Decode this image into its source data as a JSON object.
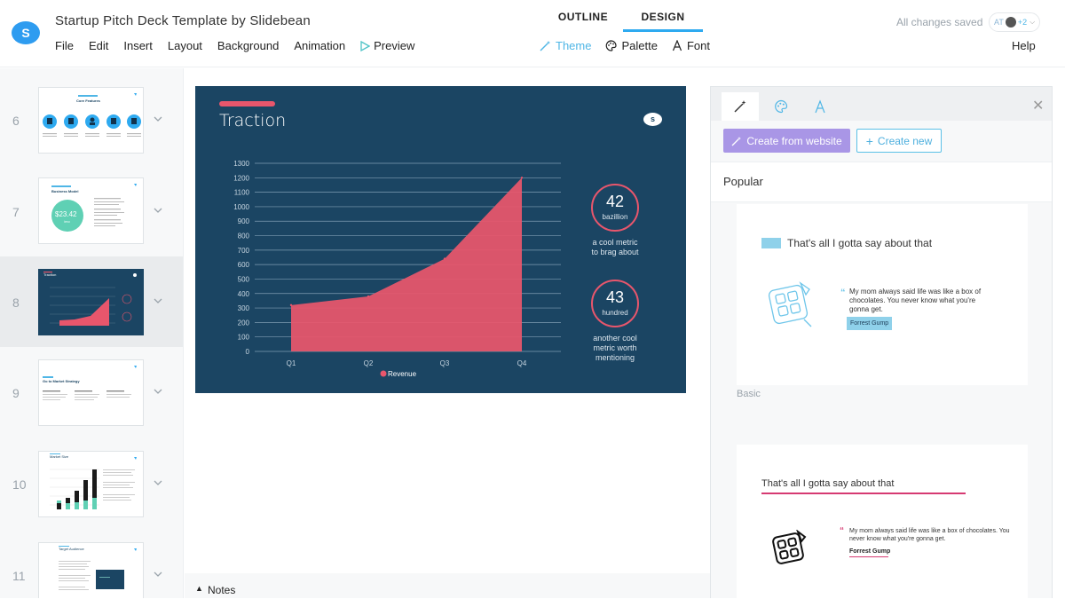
{
  "app": {
    "doc_title": "Startup Pitch Deck Template by Slidebean",
    "logo_letter": "S",
    "saved_status": "All changes saved",
    "help_label": "Help"
  },
  "menu": {
    "items": [
      "File",
      "Edit",
      "Insert",
      "Layout",
      "Background",
      "Animation"
    ],
    "preview_label": "Preview"
  },
  "modes": {
    "outline": "OUTLINE",
    "design": "DESIGN",
    "active": "DESIGN"
  },
  "design_tools": {
    "theme": "Theme",
    "palette": "Palette",
    "font": "Font",
    "active": "Theme"
  },
  "collaborators": {
    "initials": "AT",
    "extra_count": "+2"
  },
  "sidebar": {
    "slides": [
      {
        "number": "6",
        "title": "Core Features"
      },
      {
        "number": "7",
        "title": "Business Model",
        "price": "$23.42",
        "price_unit": "/mo"
      },
      {
        "number": "8",
        "title": "Traction",
        "active": true
      },
      {
        "number": "9",
        "title": "Go to Market Strategy"
      },
      {
        "number": "10",
        "title": "Market Size"
      },
      {
        "number": "11",
        "title": "Target Audience"
      }
    ]
  },
  "slide": {
    "title": "Traction",
    "logo_letter": "s",
    "metrics": [
      {
        "value": "42",
        "unit": "bazillion",
        "caption_lines": [
          "a cool metric",
          "to brag about"
        ]
      },
      {
        "value": "43",
        "unit": "hundred",
        "caption_lines": [
          "another cool",
          "metric worth",
          "mentioning"
        ]
      }
    ],
    "colors": {
      "background": "#1b4563",
      "accent": "#e8566c",
      "text": "#ffffff"
    }
  },
  "chart_data": {
    "type": "area",
    "categories": [
      "Q1",
      "Q2",
      "Q3",
      "Q4"
    ],
    "series": [
      {
        "name": "Revenue",
        "values": [
          320,
          380,
          640,
          1200
        ]
      }
    ],
    "ylim": [
      0,
      1300
    ],
    "yticks": [
      0,
      100,
      200,
      300,
      400,
      500,
      600,
      700,
      800,
      900,
      1000,
      1100,
      1200,
      1300
    ],
    "grid": true,
    "legend": "bottom",
    "title": "",
    "xlabel": "",
    "ylabel": ""
  },
  "notes_label": "Notes",
  "panel": {
    "create_from_website": "Create from website",
    "create_new": "Create new",
    "section_title": "Popular",
    "themes": [
      {
        "name": "Basic",
        "heading": "That's all I gotta say about that",
        "quote_lines": [
          "My mom always said life was like a box of",
          "chocolates. You never know what you're",
          "gonna get."
        ],
        "author": "Forrest Gump"
      },
      {
        "name": "",
        "heading": "That's all I gotta say about that",
        "quote_lines": [
          "My mom always said life was like a box of chocolates. You",
          "never know what you're gonna get."
        ],
        "author": "Forrest Gump"
      }
    ]
  }
}
